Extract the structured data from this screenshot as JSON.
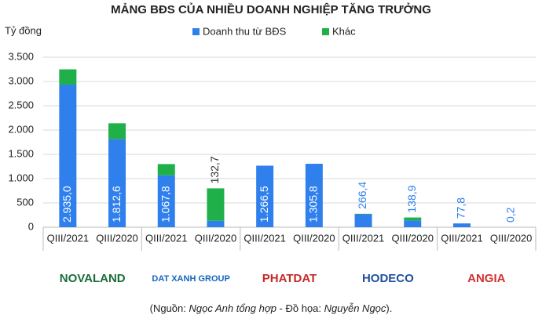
{
  "chart_data": {
    "type": "stacked_bar",
    "title": "MẢNG BĐS CỦA NHIỀU DOANH NGHIỆP TĂNG TRƯỞNG",
    "y_label": "Tỷ đồng",
    "categories": [
      "QIII/2021",
      "QIII/2020",
      "QIII/2021",
      "QIII/2020",
      "QIII/2021",
      "QIII/2020",
      "QIII/2021",
      "QIII/2020",
      "QIII/2021",
      "QIII/2020"
    ],
    "groups": [
      "NOVALAND",
      "DAT XANH GROUP",
      "PHATDAT",
      "HODECO",
      "ANGIA"
    ],
    "series": [
      {
        "name": "Doanh thu từ BĐS",
        "color": "#2f80ed",
        "values": [
          2935.0,
          1812.6,
          1067.8,
          132.7,
          1266.5,
          1305.8,
          266.4,
          138.9,
          77.8,
          0.2
        ],
        "value_labels": [
          "2.935,0",
          "1.812,6",
          "1.067,8",
          "132,7",
          "1.266,5",
          "1.305,8",
          "266,4",
          "138,9",
          "77,8",
          "0,2"
        ]
      },
      {
        "name": "Khác",
        "color": "#1fb04a",
        "values": [
          315,
          327,
          232,
          667,
          0,
          0,
          10,
          61,
          0,
          0
        ]
      }
    ],
    "ylim": [
      0,
      3500
    ],
    "yticks": [
      0,
      500,
      {
        "value": 1000,
        "label": "1.000"
      },
      {
        "value": 1500,
        "label": "1.500"
      },
      {
        "value": 2000,
        "label": "2.000"
      },
      {
        "value": 2500,
        "label": "2.500"
      },
      {
        "value": 3000,
        "label": "3.000"
      },
      {
        "value": 3500,
        "label": "3.500"
      }
    ],
    "grid": true,
    "legend": "top",
    "source": [
      "(Nguồn: ",
      "Ngọc Anh tổng hợp",
      " - Đồ họa: ",
      "Nguyễn Ngọc",
      ")."
    ]
  }
}
